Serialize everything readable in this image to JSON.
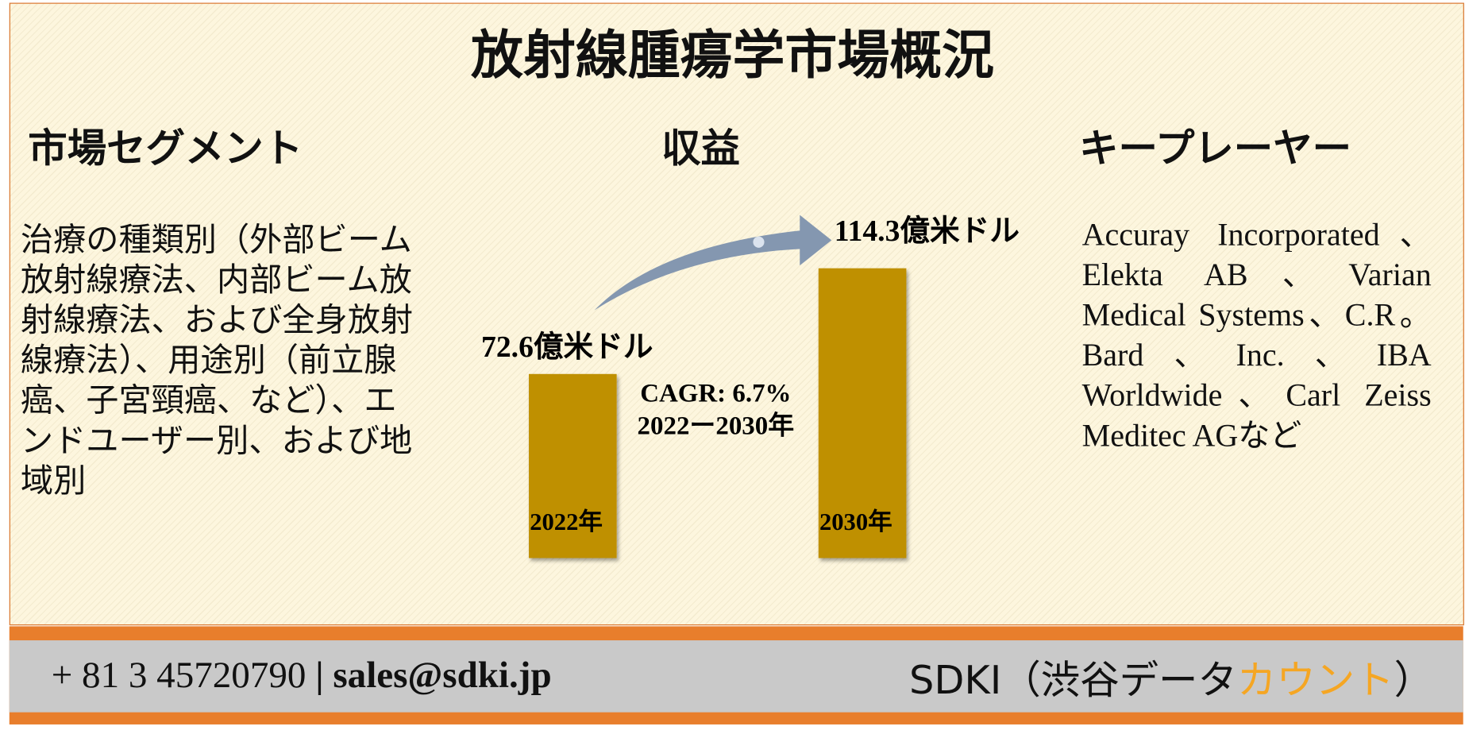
{
  "header": {
    "title": "放射線腫瘍学市場概況"
  },
  "segments": {
    "heading": "市場セグメント",
    "text": "治療の種類別（外部ビーム放射線療法、内部ビーム放射線療法、および全身放射線療法）、用途別（前立腺癌、子宮頸癌、など）、エンドユーザー別、および地域別"
  },
  "revenue": {
    "heading": "収益"
  },
  "chart_data": {
    "type": "bar",
    "categories": [
      "2022年",
      "2030年"
    ],
    "values": [
      72.6,
      114.3
    ],
    "value_labels": [
      "72.6億米ドル",
      "114.3億米ドル"
    ],
    "color": "#bf9000",
    "annotations": [
      "CAGR: 6.7%",
      "2022ー2030年"
    ]
  },
  "players": {
    "heading": "キープレーヤー",
    "text": "Accuray Incorporated、Elekta AB、Varian Medical Systems、C.R。Bard、Inc.、IBA Worldwide、Carl Zeiss Meditec AGなど"
  },
  "footer": {
    "phone": "+ 81 3 45720790",
    "separator": "|",
    "email": "sales@sdki.jp",
    "company": [
      "SDKI（渋谷データ",
      "カウント",
      "）"
    ]
  }
}
